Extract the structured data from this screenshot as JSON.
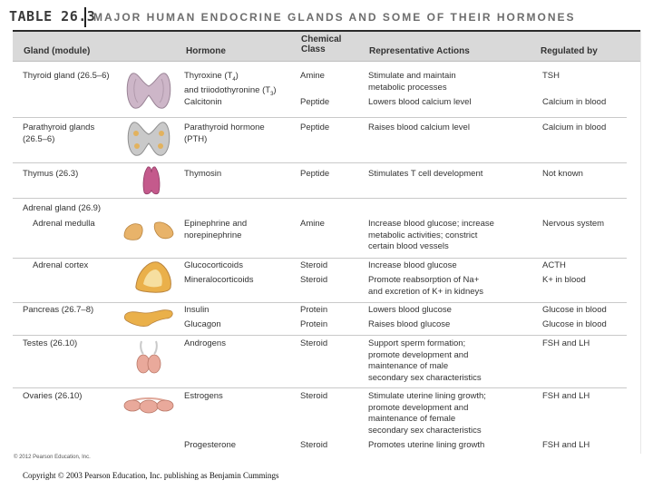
{
  "table_number": "TABLE 26.3",
  "title": "MAJOR HUMAN ENDOCRINE GLANDS AND SOME OF THEIR HORMONES",
  "headers": {
    "gland": "Gland (module)",
    "hormone": "Hormone",
    "chemical_class": "Chemical\nClass",
    "actions": "Representative Actions",
    "regulated_by": "Regulated by"
  },
  "rows": [
    {
      "gland": "Thyroid gland (26.5–6)",
      "hormone": "Thyroxine (T4)\nand triiodothyronine (T3)",
      "class": "Amine",
      "action": "Stimulate and maintain\nmetabolic processes",
      "regulated": "TSH"
    },
    {
      "gland": "",
      "hormone": "Calcitonin",
      "class": "Peptide",
      "action": "Lowers blood calcium level",
      "regulated": "Calcium in blood"
    },
    {
      "gland": "Parathyroid glands\n(26.5–6)",
      "hormone": "Parathyroid hormone\n(PTH)",
      "class": "Peptide",
      "action": "Raises blood calcium level",
      "regulated": "Calcium in blood"
    },
    {
      "gland": "Thymus (26.3)",
      "hormone": "Thymosin",
      "class": "Peptide",
      "action": "Stimulates T cell development",
      "regulated": "Not known"
    },
    {
      "gland": "Adrenal gland (26.9)",
      "hormone": "",
      "class": "",
      "action": "",
      "regulated": ""
    },
    {
      "gland": "Adrenal medulla",
      "hormone": "Epinephrine and\nnorepinephrine",
      "class": "Amine",
      "action": "Increase blood glucose; increase\nmetabolic activities; constrict\ncertain blood vessels",
      "regulated": "Nervous system"
    },
    {
      "gland": "Adrenal cortex",
      "hormone": "Glucocorticoids",
      "class": "Steroid",
      "action": "Increase blood glucose",
      "regulated": "ACTH"
    },
    {
      "gland": "",
      "hormone": "Mineralocorticoids",
      "class": "Steroid",
      "action": "Promote reabsorption of Na+\nand excretion of K+ in kidneys",
      "regulated": "K+ in blood"
    },
    {
      "gland": "Pancreas (26.7–8)",
      "hormone": "Insulin",
      "class": "Protein",
      "action": "Lowers blood glucose",
      "regulated": "Glucose in blood"
    },
    {
      "gland": "",
      "hormone": "Glucagon",
      "class": "Protein",
      "action": "Raises blood glucose",
      "regulated": "Glucose in blood"
    },
    {
      "gland": "Testes (26.10)",
      "hormone": "Androgens",
      "class": "Steroid",
      "action": "Support sperm formation;\npromote development and\nmaintenance of male\nsecondary sex characteristics",
      "regulated": "FSH and LH"
    },
    {
      "gland": "Ovaries (26.10)",
      "hormone": "Estrogens",
      "class": "Steroid",
      "action": "Stimulate uterine lining growth;\npromote development and\nmaintenance of female\nsecondary sex characteristics",
      "regulated": "FSH and LH"
    },
    {
      "gland": "",
      "hormone": "Progesterone",
      "class": "Steroid",
      "action": "Promotes uterine lining growth",
      "regulated": "FSH and LH"
    }
  ],
  "credit": "© 2012 Pearson Education, Inc.",
  "copyright": "Copyright © 2003 Pearson Education, Inc. publishing as Benjamin Cummings",
  "colors": {
    "header_bg": "#d9d9d9",
    "thyroid": "#cdb6c8",
    "parathyroid": "#c9c9c9",
    "thymus": "#c45a8c",
    "adrenal": "#e8b36a",
    "pancreas": "#eab04a",
    "testes": "#e9a99b",
    "ovaries": "#e9a99b"
  }
}
